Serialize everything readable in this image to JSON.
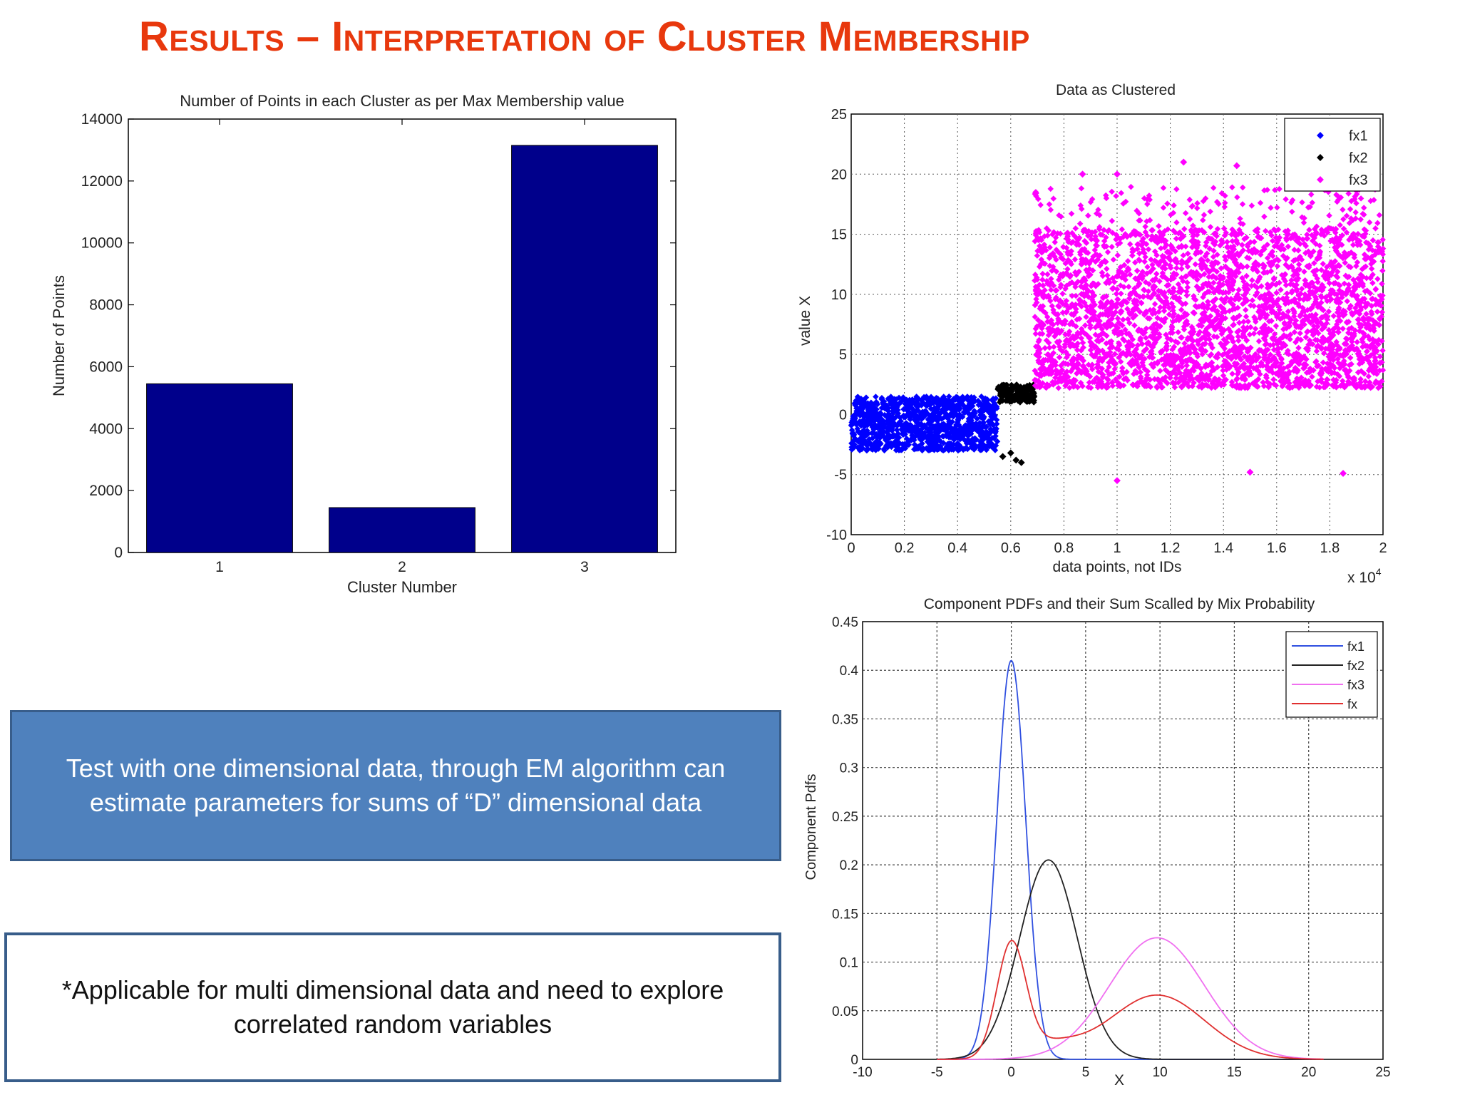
{
  "slide": {
    "title": "Results – Interpretation of Cluster Membership",
    "callout_blue": "Test with one dimensional data, through EM algorithm can estimate parameters for sums of “D” dimensional data",
    "callout_white": "*Applicable for multi dimensional data and need to explore correlated  random variables"
  },
  "colors": {
    "title": "#e8380d",
    "bar": "#00008b",
    "fx1": "#0000ff",
    "fx2": "#000000",
    "fx3": "#ff00ff",
    "fx": "#e03030",
    "callout_fill": "#4f81bd"
  },
  "chart_data": [
    {
      "type": "bar",
      "title": "Number of Points in each Cluster as per Max Membership value",
      "xlabel": "Cluster Number",
      "ylabel": "Number of Points",
      "categories": [
        "1",
        "2",
        "3"
      ],
      "values": [
        5450,
        1450,
        13150
      ],
      "ylim": [
        0,
        14000
      ],
      "yticks": [
        0,
        2000,
        4000,
        6000,
        8000,
        10000,
        12000,
        14000
      ],
      "grid": false
    },
    {
      "type": "scatter",
      "title": "Data as Clustered",
      "xlabel": "data points, not IDs",
      "ylabel": "value X",
      "x_multiplier_label": "x 10",
      "x_multiplier_exponent": "4",
      "xlim": [
        0,
        2
      ],
      "ylim": [
        -10,
        25
      ],
      "xticks": [
        "0",
        "0.2",
        "0.4",
        "0.6",
        "0.8",
        "1",
        "1.2",
        "1.4",
        "1.6",
        "1.8",
        "2"
      ],
      "yticks": [
        "25",
        "20",
        "15",
        "10",
        "5",
        "0",
        "-5",
        "-10"
      ],
      "grid": true,
      "legend_position": "top-right",
      "series": [
        {
          "name": "fx1",
          "color": "#0000ff",
          "x_range": [
            0,
            0.55
          ],
          "y_range": [
            -3,
            1.5
          ]
        },
        {
          "name": "fx2",
          "color": "#000000",
          "x_range": [
            0.55,
            0.69
          ],
          "y_range": [
            1,
            2.5
          ],
          "outliers": [
            [
              0.57,
              -3.5
            ],
            [
              0.6,
              -3.2
            ],
            [
              0.62,
              -3.8
            ],
            [
              0.64,
              -4.0
            ]
          ]
        },
        {
          "name": "fx3",
          "color": "#ff00ff",
          "x_range": [
            0.69,
            2.0
          ],
          "y_range": [
            2.2,
            15.5
          ],
          "outliers": [
            [
              0.87,
              20.0
            ],
            [
              1.0,
              20.0
            ],
            [
              1.25,
              21.0
            ],
            [
              1.45,
              20.7
            ],
            [
              1.0,
              -5.5
            ],
            [
              1.5,
              -4.8
            ],
            [
              1.85,
              -4.9
            ]
          ]
        }
      ]
    },
    {
      "type": "line",
      "title": "Component PDFs and their Sum Scalled by Mix Probability",
      "xlabel": "X",
      "ylabel": "Component Pdfs",
      "xlim": [
        -10,
        25
      ],
      "ylim": [
        0,
        0.45
      ],
      "xticks": [
        "-10",
        "-5",
        "0",
        "5",
        "10",
        "15",
        "20",
        "25"
      ],
      "yticks": [
        "0.45",
        "0.4",
        "0.35",
        "0.3",
        "0.25",
        "0.2",
        "0.15",
        "0.1",
        "0.05",
        "0"
      ],
      "grid": true,
      "legend_position": "top-right",
      "x_domain": [
        -5,
        21
      ],
      "series": [
        {
          "name": "fx1",
          "color": "#3050e0",
          "mean": 0,
          "sd": 0.97,
          "peak": 0.41
        },
        {
          "name": "fx2",
          "color": "#222222",
          "mean": 2.5,
          "sd": 1.95,
          "peak": 0.205
        },
        {
          "name": "fx3",
          "color": "#f070f0",
          "mean": 9.8,
          "sd": 3.2,
          "peak": 0.125
        },
        {
          "name": "fx",
          "color": "#e03030",
          "components": [
            "fx1",
            "fx2",
            "fx3"
          ],
          "weights": [
            0.28,
            0.07,
            0.53
          ]
        }
      ]
    }
  ]
}
